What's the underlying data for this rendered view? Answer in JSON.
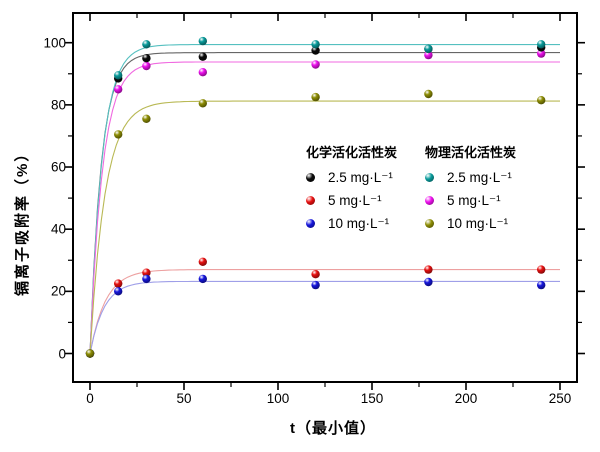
{
  "chart_data": {
    "type": "scatter",
    "title": "",
    "xlabel": "t（最小值）",
    "ylabel": "镉离子吸附率（%）",
    "x_ticks": [
      0,
      50,
      100,
      150,
      200,
      250
    ],
    "x_minor_ticks": [
      25,
      75,
      125,
      175,
      225
    ],
    "y_ticks": [
      0,
      20,
      40,
      60,
      80,
      100
    ],
    "y_minor_ticks": [
      10,
      30,
      50,
      70,
      90
    ],
    "xlim": [
      -10,
      260
    ],
    "ylim": [
      -10,
      110
    ],
    "grid": false,
    "marker_style": "3d-ball",
    "x": [
      0,
      15,
      30,
      60,
      120,
      180,
      240
    ],
    "series": [
      {
        "name": "化学活化活性炭 2.5 mg·L⁻¹",
        "group": "化学活化活性炭",
        "label": "2.5 mg·L⁻¹",
        "color": "#0a0a0a",
        "line_color": "#666666",
        "values": [
          0,
          88.5,
          95,
          95.5,
          97.5,
          98,
          98.5
        ],
        "fit": {
          "model": "exponential-rise",
          "plateau": 96.8,
          "k": 0.165
        }
      },
      {
        "name": "化学活化活性炭 5 mg·L⁻¹",
        "group": "化学活化活性炭",
        "label": "5 mg·L⁻¹",
        "color": "#e81010",
        "line_color": "#eda0a0",
        "values": [
          0,
          22.5,
          26,
          29.5,
          25.5,
          27,
          27
        ],
        "fit": {
          "model": "exponential-rise",
          "plateau": 27.0,
          "k": 0.12
        }
      },
      {
        "name": "化学活化活性炭 10 mg·L⁻¹",
        "group": "化学活化活性炭",
        "label": "10 mg·L⁻¹",
        "color": "#1515dd",
        "line_color": "#9f9fe8",
        "values": [
          0,
          20,
          24,
          24,
          22,
          23,
          22
        ],
        "fit": {
          "model": "exponential-rise",
          "plateau": 23.2,
          "k": 0.135
        }
      },
      {
        "name": "物理活化活性炭 2.5 mg·L⁻¹",
        "group": "物理活化活性炭",
        "label": "2.5 mg·L⁻¹",
        "color": "#089b9b",
        "line_color": "#55c0c0",
        "values": [
          0,
          89.5,
          99.5,
          100.5,
          99.5,
          98,
          99.5
        ],
        "fit": {
          "model": "exponential-rise",
          "plateau": 99.4,
          "k": 0.155
        }
      },
      {
        "name": "物理活化活性炭 5 mg·L⁻¹",
        "group": "物理活化活性炭",
        "label": "5 mg·L⁻¹",
        "color": "#ee10ee",
        "line_color": "#f06ae0",
        "values": [
          0,
          85,
          92.5,
          90.5,
          93,
          96,
          96.5
        ],
        "fit": {
          "model": "exponential-rise",
          "plateau": 93.8,
          "k": 0.15
        }
      },
      {
        "name": "物理活化活性炭 10 mg·L⁻¹",
        "group": "物理活化活性炭",
        "label": "10 mg·L⁻¹",
        "color": "#8e8e05",
        "line_color": "#b9b955",
        "values": [
          0,
          70.5,
          75.5,
          80.5,
          82.5,
          83.5,
          81.5
        ],
        "fit": {
          "model": "exponential-rise",
          "plateau": 81.2,
          "k": 0.125
        }
      }
    ],
    "legend": {
      "position": "center-right-inside",
      "groups": [
        {
          "title": "化学活化活性炭",
          "items": [
            "2.5 mg·L⁻¹",
            "5 mg·L⁻¹",
            "10 mg·L⁻¹"
          ]
        },
        {
          "title": "物理活化活性炭",
          "items": [
            "2.5 mg·L⁻¹",
            "5 mg·L⁻¹",
            "10 mg·L⁻¹"
          ]
        }
      ]
    }
  }
}
